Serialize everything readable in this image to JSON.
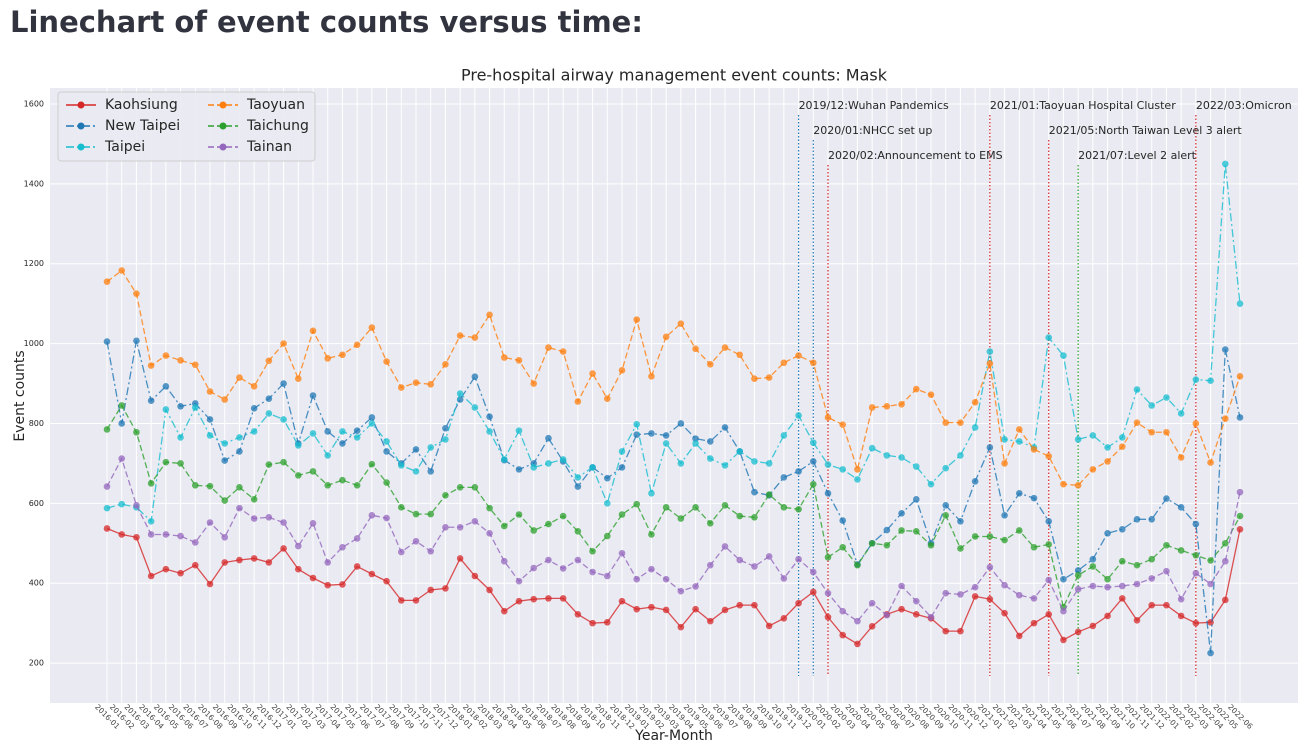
{
  "heading": "Linechart of event counts versus time:",
  "chart_data": {
    "type": "line",
    "title": "Pre-hospital airway management event counts: Mask",
    "xlabel": "Year-Month",
    "ylabel": "Event counts",
    "categories": [
      "2016-01",
      "2016-02",
      "2016-03",
      "2016-04",
      "2016-05",
      "2016-06",
      "2016-07",
      "2016-08",
      "2016-09",
      "2016-10",
      "2016-11",
      "2016-12",
      "2017-01",
      "2017-02",
      "2017-03",
      "2017-04",
      "2017-05",
      "2017-06",
      "2017-07",
      "2017-08",
      "2017-09",
      "2017-10",
      "2017-11",
      "2017-12",
      "2018-01",
      "2018-02",
      "2018-03",
      "2018-04",
      "2018-05",
      "2018-06",
      "2018-07",
      "2018-08",
      "2018-09",
      "2018-10",
      "2018-11",
      "2018-12",
      "2019-01",
      "2019-02",
      "2019-03",
      "2019-04",
      "2019-05",
      "2019-06",
      "2019-07",
      "2019-08",
      "2019-09",
      "2019-10",
      "2019-11",
      "2019-12",
      "2020-01",
      "2020-02",
      "2020-03",
      "2020-04",
      "2020-05",
      "2020-06",
      "2020-07",
      "2020-08",
      "2020-09",
      "2020-10",
      "2020-11",
      "2020-12",
      "2021-01",
      "2021-02",
      "2021-03",
      "2021-04",
      "2021-05",
      "2021-06",
      "2021-07",
      "2021-08",
      "2021-09",
      "2021-10",
      "2021-11",
      "2021-12",
      "2022-01",
      "2022-02",
      "2022-03",
      "2022-04",
      "2022-05",
      "2022-06"
    ],
    "ylim": [
      100,
      1640
    ],
    "yticks": [
      200,
      400,
      600,
      800,
      1000,
      1200,
      1400,
      1600
    ],
    "grid": true,
    "legend": "upper left",
    "series": [
      {
        "name": "Kaohsiung",
        "color": "#d62728",
        "linestyle": "solid",
        "values": [
          537,
          522,
          515,
          418,
          435,
          425,
          445,
          398,
          452,
          458,
          462,
          452,
          487,
          435,
          413,
          395,
          397,
          442,
          423,
          405,
          357,
          357,
          383,
          387,
          462,
          418,
          383,
          330,
          355,
          360,
          362,
          362,
          322,
          300,
          302,
          355,
          335,
          340,
          333,
          290,
          335,
          305,
          333,
          345,
          345,
          293,
          312,
          350,
          378,
          315,
          270,
          248,
          292,
          322,
          335,
          322,
          312,
          280,
          280,
          367,
          360,
          325,
          268,
          300,
          322,
          258,
          278,
          293,
          318,
          362,
          307,
          345,
          345,
          318,
          300,
          302,
          358,
          535
        ]
      },
      {
        "name": "New Taipei",
        "color": "#1f77b4",
        "linestyle": "dashdot",
        "values": [
          1005,
          800,
          1007,
          857,
          893,
          843,
          850,
          810,
          707,
          730,
          838,
          862,
          900,
          750,
          870,
          780,
          750,
          782,
          815,
          730,
          700,
          735,
          680,
          788,
          860,
          917,
          817,
          708,
          685,
          700,
          763,
          705,
          642,
          690,
          663,
          690,
          772,
          775,
          770,
          800,
          762,
          755,
          790,
          730,
          628,
          620,
          665,
          680,
          705,
          625,
          557,
          447,
          500,
          533,
          575,
          610,
          500,
          595,
          555,
          655,
          740,
          570,
          625,
          613,
          555,
          410,
          432,
          460,
          525,
          535,
          560,
          560,
          612,
          590,
          548,
          225,
          985,
          815
        ]
      },
      {
        "name": "Taipei",
        "color": "#17becf",
        "linestyle": "dashdot",
        "values": [
          588,
          598,
          590,
          555,
          835,
          765,
          840,
          770,
          750,
          765,
          780,
          825,
          810,
          745,
          775,
          720,
          780,
          765,
          800,
          755,
          695,
          680,
          740,
          760,
          875,
          840,
          780,
          710,
          782,
          690,
          700,
          710,
          665,
          690,
          600,
          730,
          798,
          625,
          750,
          700,
          750,
          712,
          695,
          730,
          705,
          700,
          770,
          820,
          752,
          697,
          685,
          660,
          738,
          720,
          715,
          692,
          648,
          688,
          720,
          790,
          980,
          760,
          755,
          740,
          1015,
          970,
          760,
          770,
          740,
          765,
          885,
          845,
          865,
          825,
          910,
          907,
          1450,
          1100
        ]
      },
      {
        "name": "Taoyuan",
        "color": "#ff7f0e",
        "linestyle": "dashed",
        "values": [
          1155,
          1183,
          1125,
          945,
          970,
          958,
          947,
          880,
          860,
          915,
          893,
          957,
          1000,
          912,
          1032,
          963,
          972,
          997,
          1040,
          955,
          890,
          902,
          898,
          948,
          1020,
          1015,
          1072,
          965,
          958,
          900,
          990,
          980,
          855,
          925,
          862,
          933,
          1060,
          918,
          1017,
          1050,
          987,
          948,
          990,
          972,
          912,
          915,
          952,
          970,
          952,
          815,
          797,
          685,
          840,
          843,
          848,
          886,
          872,
          802,
          802,
          853,
          950,
          700,
          785,
          735,
          718,
          648,
          645,
          685,
          705,
          742,
          802,
          778,
          778,
          715,
          800,
          702,
          812,
          918
        ]
      },
      {
        "name": "Taichung",
        "color": "#2ca02c",
        "linestyle": "dashed",
        "values": [
          785,
          845,
          778,
          650,
          703,
          700,
          645,
          643,
          607,
          640,
          610,
          697,
          703,
          670,
          680,
          645,
          658,
          645,
          698,
          652,
          590,
          573,
          573,
          620,
          640,
          640,
          588,
          543,
          572,
          532,
          548,
          568,
          530,
          480,
          518,
          572,
          598,
          522,
          590,
          562,
          590,
          550,
          595,
          568,
          565,
          622,
          590,
          585,
          648,
          465,
          490,
          445,
          500,
          495,
          532,
          530,
          495,
          570,
          487,
          517,
          517,
          508,
          532,
          490,
          497,
          340,
          420,
          442,
          410,
          455,
          445,
          460,
          495,
          482,
          470,
          457,
          500,
          568
        ]
      },
      {
        "name": "Tainan",
        "color": "#9467bd",
        "linestyle": "dashed",
        "values": [
          642,
          712,
          595,
          522,
          522,
          518,
          502,
          552,
          515,
          588,
          562,
          565,
          552,
          493,
          550,
          452,
          490,
          512,
          570,
          563,
          478,
          505,
          480,
          540,
          540,
          555,
          525,
          455,
          405,
          438,
          458,
          437,
          458,
          428,
          418,
          475,
          410,
          435,
          410,
          380,
          392,
          445,
          492,
          458,
          442,
          467,
          412,
          460,
          428,
          375,
          330,
          305,
          350,
          320,
          393,
          355,
          315,
          375,
          372,
          390,
          440,
          395,
          370,
          362,
          408,
          330,
          385,
          393,
          390,
          393,
          398,
          412,
          430,
          360,
          425,
          398,
          455,
          628
        ]
      }
    ],
    "annotations": [
      {
        "text": "2019/12:Wuhan Pandemics",
        "x": "2019-12",
        "color": "#1f77b4"
      },
      {
        "text": "2020/01:NHCC set up",
        "x": "2020-01",
        "color": "#1f77b4"
      },
      {
        "text": "2020/02:Announcement to EMS",
        "x": "2020-02",
        "color": "#d62728"
      },
      {
        "text": "2021/01:Taoyuan Hospital Cluster",
        "x": "2021-01",
        "color": "#d62728"
      },
      {
        "text": "2021/05:North Taiwan Level 3 alert",
        "x": "2021-05",
        "color": "#d62728"
      },
      {
        "text": "2021/07:Level 2 alert",
        "x": "2021-07",
        "color": "#2ca02c"
      },
      {
        "text": "2022/03:Omicron",
        "x": "2022-03",
        "color": "#d62728"
      }
    ]
  }
}
